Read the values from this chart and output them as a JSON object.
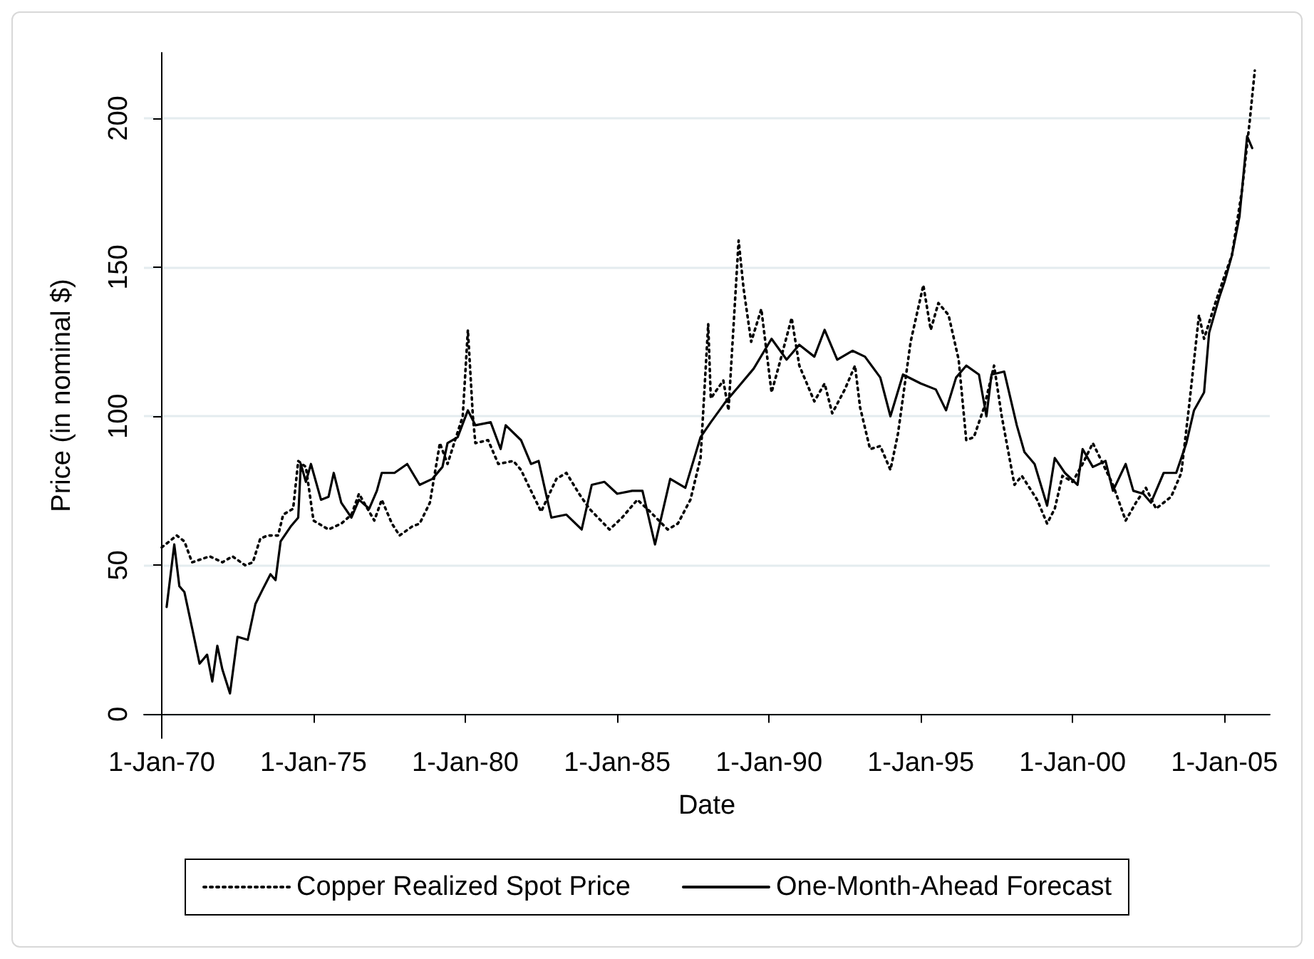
{
  "chart_data": {
    "type": "line",
    "xlabel": "Date",
    "ylabel": "Price (in nominal $)",
    "xlim": [
      "1969-06",
      "2006-07"
    ],
    "ylim": [
      -8,
      222
    ],
    "xticks": [
      {
        "value": "1970-01-01",
        "label": "1-Jan-70"
      },
      {
        "value": "1975-01-01",
        "label": "1-Jan-75"
      },
      {
        "value": "1980-01-01",
        "label": "1-Jan-80"
      },
      {
        "value": "1985-01-01",
        "label": "1-Jan-85"
      },
      {
        "value": "1990-01-01",
        "label": "1-Jan-90"
      },
      {
        "value": "1995-01-01",
        "label": "1-Jan-95"
      },
      {
        "value": "2000-01-01",
        "label": "1-Jan-00"
      },
      {
        "value": "2005-01-01",
        "label": "1-Jan-05"
      }
    ],
    "yticks": [
      0,
      50,
      100,
      150,
      200
    ],
    "grid": "y",
    "legend": "bottom",
    "marker": "none",
    "series": [
      {
        "name": "Copper Realized Spot Price",
        "color": "#000000",
        "line_style": "dotted",
        "x": [
          "1970-01",
          "1970-07",
          "1970-10",
          "1971-01",
          "1971-08",
          "1972-01",
          "1972-05",
          "1972-10",
          "1973-01",
          "1973-04",
          "1973-07",
          "1973-11",
          "1974-01",
          "1974-05",
          "1974-07",
          "1974-10",
          "1975-01",
          "1975-07",
          "1975-12",
          "1976-04",
          "1976-07",
          "1977-01",
          "1977-04",
          "1977-08",
          "1977-11",
          "1978-04",
          "1978-07",
          "1978-11",
          "1979-03",
          "1979-06",
          "1979-12",
          "1980-02",
          "1980-04",
          "1980-05",
          "1980-10",
          "1981-02",
          "1981-08",
          "1981-11",
          "1982-03",
          "1982-07",
          "1983-01",
          "1983-05",
          "1983-10",
          "1984-02",
          "1984-10",
          "1985-03",
          "1985-09",
          "1986-02",
          "1986-09",
          "1987-01",
          "1987-06",
          "1987-10",
          "1988-01",
          "1988-02",
          "1988-07",
          "1988-09",
          "1989-01",
          "1989-03",
          "1989-06",
          "1989-10",
          "1990-02",
          "1990-05",
          "1990-10",
          "1991-01",
          "1991-07",
          "1991-11",
          "1992-02",
          "1992-07",
          "1992-11",
          "1993-01",
          "1993-05",
          "1993-09",
          "1994-01",
          "1994-04",
          "1994-09",
          "1995-02",
          "1995-05",
          "1995-08",
          "1995-12",
          "1996-04",
          "1996-07",
          "1996-10",
          "1997-02",
          "1997-06",
          "1997-09",
          "1998-02",
          "1998-05",
          "1998-11",
          "1999-03",
          "1999-06",
          "1999-09",
          "2000-01",
          "2000-05",
          "2000-09",
          "2001-01",
          "2001-05",
          "2001-10",
          "2002-02",
          "2002-06",
          "2002-10",
          "2003-04",
          "2003-08",
          "2003-11",
          "2004-03",
          "2004-05",
          "2004-09",
          "2005-01",
          "2005-04",
          "2005-08",
          "2005-11",
          "2006-01"
        ],
        "values": [
          56,
          60,
          58,
          51,
          53,
          51,
          53,
          50,
          51,
          59,
          60,
          60,
          67,
          69,
          85,
          83,
          65,
          62,
          64,
          67,
          74,
          65,
          72,
          64,
          60,
          63,
          64,
          71,
          91,
          84,
          100,
          129,
          100,
          91,
          92,
          84,
          85,
          82,
          75,
          68,
          79,
          81,
          74,
          69,
          62,
          66,
          72,
          68,
          62,
          64,
          72,
          86,
          131,
          106,
          112,
          102,
          159,
          143,
          125,
          136,
          108,
          117,
          133,
          117,
          105,
          111,
          101,
          109,
          117,
          103,
          89,
          90,
          82,
          94,
          125,
          144,
          129,
          138,
          134,
          119,
          92,
          93,
          103,
          117,
          100,
          77,
          80,
          72,
          64,
          69,
          80,
          78,
          84,
          91,
          84,
          77,
          65,
          71,
          76,
          69,
          73,
          81,
          103,
          134,
          126,
          137,
          147,
          154,
          176,
          199,
          216
        ]
      },
      {
        "name": "One-Month-Ahead Forecast",
        "color": "#000000",
        "line_style": "solid",
        "x": [
          "1970-03",
          "1970-06",
          "1970-08",
          "1970-10",
          "1971-01",
          "1971-04",
          "1971-07",
          "1971-09",
          "1971-11",
          "1972-01",
          "1972-04",
          "1972-07",
          "1972-11",
          "1973-02",
          "1973-05",
          "1973-08",
          "1973-10",
          "1973-12",
          "1974-04",
          "1974-07",
          "1974-08",
          "1974-10",
          "1974-12",
          "1975-04",
          "1975-07",
          "1975-09",
          "1975-12",
          "1976-04",
          "1976-07",
          "1976-11",
          "1977-02",
          "1977-04",
          "1977-09",
          "1978-02",
          "1978-07",
          "1978-12",
          "1979-04",
          "1979-06",
          "1979-10",
          "1980-02",
          "1980-05",
          "1980-11",
          "1981-03",
          "1981-05",
          "1981-11",
          "1982-03",
          "1982-06",
          "1982-11",
          "1983-05",
          "1983-11",
          "1984-03",
          "1984-08",
          "1985-01",
          "1985-07",
          "1985-11",
          "1986-04",
          "1986-10",
          "1987-04",
          "1987-10",
          "1988-02",
          "1988-08",
          "1989-01",
          "1989-07",
          "1990-02",
          "1990-08",
          "1991-01",
          "1991-07",
          "1991-11",
          "1992-04",
          "1992-10",
          "1993-03",
          "1993-09",
          "1994-01",
          "1994-06",
          "1995-01",
          "1995-07",
          "1995-11",
          "1996-03",
          "1996-07",
          "1996-12",
          "1997-03",
          "1997-05",
          "1997-10",
          "1998-03",
          "1998-06",
          "1998-10",
          "1999-03",
          "1999-06",
          "1999-10",
          "2000-03",
          "2000-05",
          "2000-09",
          "2001-02",
          "2001-05",
          "2001-10",
          "2002-01",
          "2002-05",
          "2002-08",
          "2003-01",
          "2003-06",
          "2003-10",
          "2004-01",
          "2004-05",
          "2004-07",
          "2004-11",
          "2005-01",
          "2005-04",
          "2005-07",
          "2005-10",
          "2005-12"
        ],
        "values": [
          36,
          57,
          43,
          41,
          29,
          17,
          20,
          11,
          23,
          15,
          7,
          26,
          25,
          37,
          42,
          47,
          45,
          58,
          63,
          66,
          84,
          78,
          84,
          72,
          73,
          81,
          71,
          66,
          72,
          69,
          75,
          81,
          81,
          84,
          77,
          79,
          83,
          91,
          93,
          102,
          97,
          98,
          89,
          97,
          92,
          84,
          85,
          66,
          67,
          62,
          77,
          78,
          74,
          75,
          75,
          57,
          79,
          76,
          93,
          98,
          105,
          110,
          116,
          126,
          119,
          124,
          120,
          129,
          119,
          122,
          120,
          113,
          100,
          114,
          111,
          109,
          102,
          113,
          117,
          114,
          100,
          114,
          115,
          97,
          88,
          84,
          70,
          86,
          81,
          77,
          89,
          83,
          85,
          75,
          84,
          75,
          74,
          71,
          81,
          81,
          91,
          102,
          108,
          128,
          140,
          145,
          154,
          167,
          194,
          190
        ]
      }
    ]
  }
}
